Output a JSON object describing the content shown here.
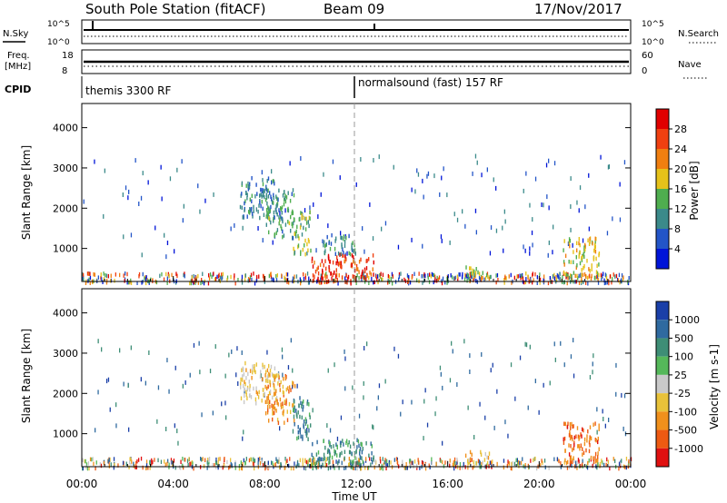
{
  "header": {
    "station": "South Pole Station (fitACF)",
    "beam": "Beam 09",
    "date": "17/Nov/2017"
  },
  "noise_panel": {
    "left_label": "N.Sky",
    "right_label": "N.Search",
    "left_ticks": [
      "10^5",
      "10^0"
    ],
    "right_ticks": [
      "10^5",
      "10^0"
    ]
  },
  "freq_panel": {
    "left_label_1": "Freq.",
    "left_label_2": "[MHz]",
    "right_label": "Nave",
    "left_ticks": [
      "18",
      "8"
    ],
    "right_ticks": [
      "60",
      "0"
    ]
  },
  "cpid_panel": {
    "label": "CPID",
    "mode_1": "themis 3300 RF",
    "mode_2": "normalsound (fast) 157 RF",
    "mode_2_start_hours": 12
  },
  "chart_data": [
    {
      "type": "heatmap",
      "name": "power",
      "ylabel": "Slant Range [km]",
      "yticks": [
        "1000",
        "2000",
        "3000",
        "4000"
      ],
      "ylim": [
        180,
        4600
      ],
      "xlim_hours": [
        0,
        24
      ],
      "colorbar": {
        "label": "Power [dB]",
        "ticks": [
          "4",
          "8",
          "12",
          "16",
          "20",
          "24",
          "28"
        ],
        "colors": [
          "#0014d8",
          "#2355c8",
          "#3b8a8a",
          "#4fae4f",
          "#e6c21a",
          "#f07f10",
          "#f04010",
          "#e00000"
        ]
      },
      "regions": [
        {
          "t": [
            6.9,
            8.6
          ],
          "r": [
            1800,
            2800
          ],
          "level": 0.25
        },
        {
          "t": [
            8.0,
            9.3
          ],
          "r": [
            1300,
            2500
          ],
          "level": 0.35
        },
        {
          "t": [
            9.2,
            10.0
          ],
          "r": [
            900,
            2000
          ],
          "level": 0.45
        },
        {
          "t": [
            10.0,
            12.8
          ],
          "r": [
            200,
            900
          ],
          "level": 0.88
        },
        {
          "t": [
            10.5,
            12.0
          ],
          "r": [
            900,
            1400
          ],
          "level": 0.3
        },
        {
          "t": [
            16.7,
            17.8
          ],
          "r": [
            300,
            600
          ],
          "level": 0.5
        },
        {
          "t": [
            21.0,
            22.6
          ],
          "r": [
            300,
            1300
          ],
          "level": 0.55
        }
      ]
    },
    {
      "type": "heatmap",
      "name": "velocity",
      "ylabel": "Slant Range [km]",
      "yticks": [
        "1000",
        "2000",
        "3000",
        "4000"
      ],
      "ylim": [
        180,
        4600
      ],
      "xlim_hours": [
        0,
        24
      ],
      "colorbar": {
        "label": "Velocity [m s-1]",
        "ticks": [
          "1000",
          "500",
          "100",
          "25",
          "-25",
          "-100",
          "-500",
          "-1000"
        ],
        "colors": [
          "#1a3fa8",
          "#2f6aa0",
          "#3e8e76",
          "#55b85a",
          "#c9c9c9",
          "#e8c23a",
          "#f0901c",
          "#ee5a12",
          "#e01010"
        ]
      },
      "regions": [
        {
          "t": [
            6.9,
            8.6
          ],
          "r": [
            1800,
            2800
          ],
          "level": 0.6
        },
        {
          "t": [
            8.0,
            9.3
          ],
          "r": [
            1300,
            2500
          ],
          "level": 0.75
        },
        {
          "t": [
            9.2,
            10.0
          ],
          "r": [
            900,
            2000
          ],
          "level": 0.2
        },
        {
          "t": [
            10.0,
            12.8
          ],
          "r": [
            200,
            900
          ],
          "level": 0.25
        },
        {
          "t": [
            16.7,
            17.8
          ],
          "r": [
            300,
            600
          ],
          "level": 0.65
        },
        {
          "t": [
            21.0,
            22.6
          ],
          "r": [
            300,
            1300
          ],
          "level": 0.85
        }
      ]
    }
  ],
  "xaxis": {
    "label": "Time UT",
    "ticks": [
      "00:00",
      "04:00",
      "08:00",
      "12:00",
      "16:00",
      "20:00",
      "00:00"
    ]
  }
}
